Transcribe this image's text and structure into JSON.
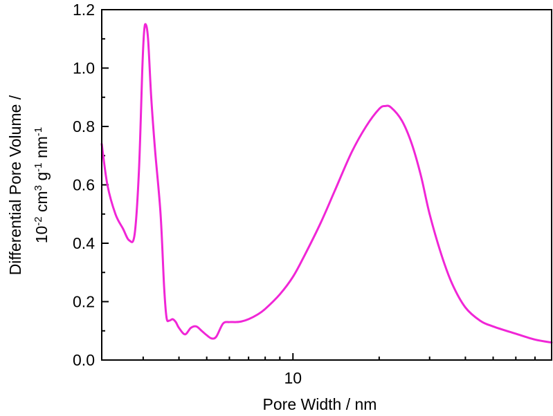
{
  "chart_data": {
    "type": "line",
    "xlabel": "Pore Width / nm",
    "ylabel": {
      "line1": "Differential Pore Volume /",
      "line2_parts": [
        {
          "text": "10",
          "sup": false
        },
        {
          "text": "-2",
          "sup": true
        },
        {
          "text": " cm",
          "sup": false
        },
        {
          "text": "3",
          "sup": true
        },
        {
          "text": " g",
          "sup": false
        },
        {
          "text": "-1",
          "sup": true
        },
        {
          "text": " nm",
          "sup": false
        },
        {
          "text": "-1",
          "sup": true
        }
      ]
    },
    "x_scale": "log",
    "xlim": [
      2.15,
      80
    ],
    "ylim": [
      0.0,
      1.2
    ],
    "x_ticks": [
      10
    ],
    "x_tick_labels": [
      "10"
    ],
    "x_minor_ticks": [
      3,
      4,
      5,
      6,
      7,
      8,
      9,
      20,
      30,
      40,
      50,
      60,
      70
    ],
    "y_ticks": [
      0.0,
      0.2,
      0.4,
      0.6,
      0.8,
      1.0,
      1.2
    ],
    "y_tick_labels": [
      "0.0",
      "0.2",
      "0.4",
      "0.6",
      "0.8",
      "1.0",
      "1.2"
    ],
    "grid": false,
    "series_color": "#f026d6",
    "series": [
      {
        "x": [
          2.15,
          2.25,
          2.4,
          2.55,
          2.68,
          2.8,
          2.9,
          2.98,
          3.02,
          3.06,
          3.12,
          3.2,
          3.3,
          3.45,
          3.55,
          3.62,
          3.7,
          3.8,
          3.9,
          4.0,
          4.2,
          4.4,
          4.6,
          4.8,
          5.0,
          5.2,
          5.4,
          5.7,
          6.0,
          6.3,
          6.6,
          7.0,
          7.5,
          8.0,
          9.0,
          10.0,
          11.0,
          12.5,
          14.0,
          16.0,
          18.0,
          20.0,
          21.0,
          22.0,
          24.0,
          26.0,
          28.0,
          30.0,
          33.0,
          36.0,
          40.0,
          45.0,
          50.0,
          60.0,
          70.0,
          80.0
        ],
        "y": [
          0.74,
          0.6,
          0.5,
          0.45,
          0.41,
          0.43,
          0.65,
          1.0,
          1.12,
          1.15,
          1.1,
          0.9,
          0.72,
          0.5,
          0.25,
          0.145,
          0.135,
          0.14,
          0.13,
          0.11,
          0.088,
          0.11,
          0.115,
          0.1,
          0.085,
          0.074,
          0.08,
          0.125,
          0.13,
          0.13,
          0.132,
          0.14,
          0.155,
          0.175,
          0.225,
          0.285,
          0.36,
          0.47,
          0.58,
          0.71,
          0.8,
          0.86,
          0.87,
          0.865,
          0.82,
          0.74,
          0.63,
          0.5,
          0.36,
          0.26,
          0.18,
          0.135,
          0.115,
          0.09,
          0.07,
          0.06
        ]
      }
    ]
  }
}
